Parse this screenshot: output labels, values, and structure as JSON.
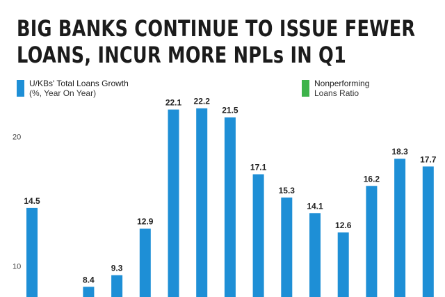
{
  "title_lines": [
    "BIG BANKS CONTINUE TO ISSUE FEWER",
    "LOANS, INCUR MORE NPLs IN Q1"
  ],
  "legend": {
    "loans": {
      "line1": "U/KBs' Total Loans Growth",
      "line2": "(%, Year On Year)",
      "color": "#1e8fd6"
    },
    "npl": {
      "line1": "Nonperforming",
      "line2": "Loans Ratio",
      "color": "#3db34a"
    }
  },
  "chart_data": {
    "type": "bar",
    "series": [
      {
        "name": "U/KBs' Total Loans Growth",
        "color": "#1e8fd6",
        "values": [
          14.5,
          null,
          8.4,
          9.3,
          12.9,
          22.1,
          22.2,
          21.5,
          17.1,
          15.3,
          14.1,
          12.6,
          16.2,
          18.3,
          17.7
        ]
      }
    ],
    "y_ticks": [
      "10",
      "20"
    ],
    "ylim": [
      6,
      25
    ],
    "grid": false
  }
}
